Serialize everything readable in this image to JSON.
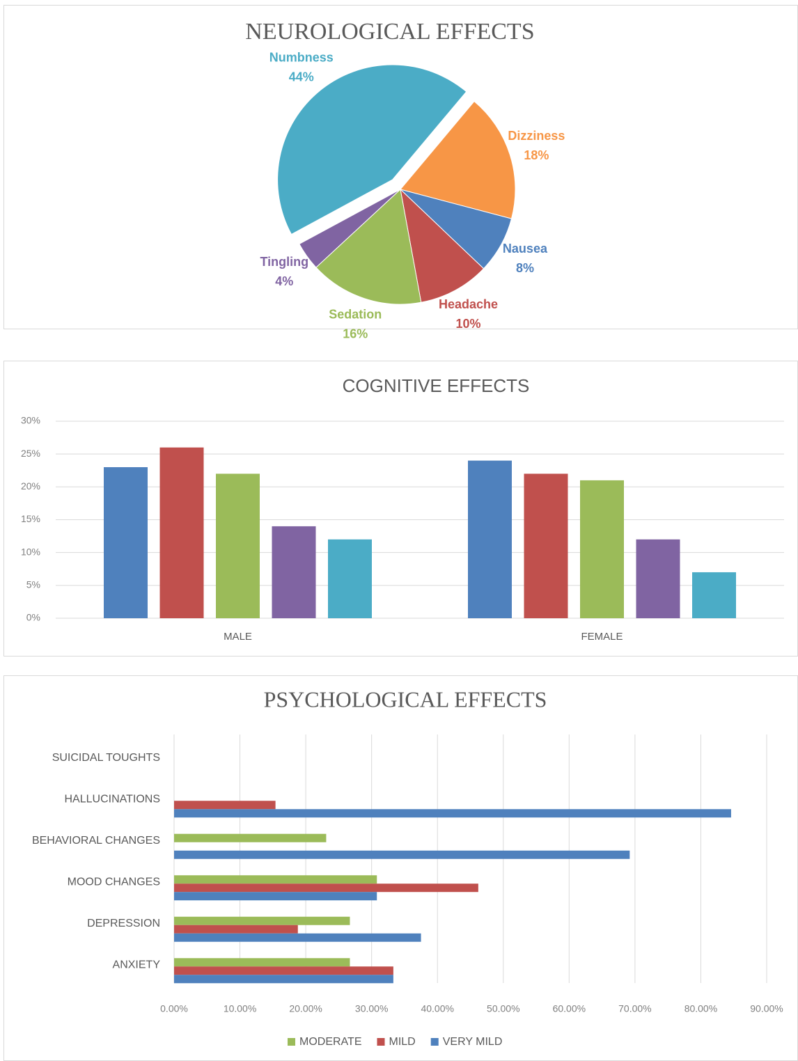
{
  "chart_data": [
    {
      "type": "pie",
      "title": "NEUROLOGICAL EFFECTS",
      "categories": [
        "Dizziness",
        "Nausea",
        "Headache",
        "Sedation",
        "Tingling",
        "Numbness"
      ],
      "values": [
        18,
        8,
        10,
        16,
        4,
        44
      ],
      "value_labels": [
        "18%",
        "8%",
        "10%",
        "16%",
        "4%",
        "44%"
      ],
      "colors": [
        "#f79646",
        "#4f81bd",
        "#c0504d",
        "#9bbb59",
        "#8064a2",
        "#4bacc6"
      ]
    },
    {
      "type": "bar",
      "title": "COGNITIVE EFFECTS",
      "categories": [
        "MALE",
        "FEMALE"
      ],
      "series": [
        {
          "color": "#4f81bd",
          "values": [
            23,
            24
          ]
        },
        {
          "color": "#c0504d",
          "values": [
            26,
            22
          ]
        },
        {
          "color": "#9bbb59",
          "values": [
            22,
            21
          ]
        },
        {
          "color": "#8064a2",
          "values": [
            14,
            12
          ]
        },
        {
          "color": "#4bacc6",
          "values": [
            12,
            7
          ]
        }
      ],
      "ylim": [
        0,
        30
      ],
      "yticks": [
        {
          "value": 0,
          "label": "0%"
        },
        {
          "value": 5,
          "label": "5%"
        },
        {
          "value": 10,
          "label": "10%"
        },
        {
          "value": 15,
          "label": "15%"
        },
        {
          "value": 20,
          "label": "20%"
        },
        {
          "value": 25,
          "label": "25%"
        },
        {
          "value": 30,
          "label": "30%"
        }
      ],
      "grid": true
    },
    {
      "type": "hbar",
      "title": "PSYCHOLOGICAL EFFECTS",
      "categories": [
        "ANXIETY",
        "DEPRESSION",
        "MOOD CHANGES",
        "BEHAVIORAL CHANGES",
        "HALLUCINATIONS",
        "SUICIDAL TOUGHTS"
      ],
      "series": [
        {
          "name": "MODERATE",
          "color": "#9bbb59",
          "values": [
            26.7,
            26.7,
            30.8,
            23.1,
            0,
            0
          ]
        },
        {
          "name": "MILD",
          "color": "#c0504d",
          "values": [
            33.3,
            18.8,
            46.2,
            0,
            15.4,
            0
          ]
        },
        {
          "name": "VERY MILD",
          "color": "#4f81bd",
          "values": [
            33.3,
            37.5,
            30.8,
            69.2,
            84.6,
            0
          ]
        }
      ],
      "xlim": [
        0,
        90
      ],
      "xticks": [
        {
          "value": 0,
          "label": "0.00%"
        },
        {
          "value": 10,
          "label": "10.00%"
        },
        {
          "value": 20,
          "label": "20.00%"
        },
        {
          "value": 30,
          "label": "30.00%"
        },
        {
          "value": 40,
          "label": "40.00%"
        },
        {
          "value": 50,
          "label": "50.00%"
        },
        {
          "value": 60,
          "label": "60.00%"
        },
        {
          "value": 70,
          "label": "70.00%"
        },
        {
          "value": 80,
          "label": "80.00%"
        },
        {
          "value": 90,
          "label": "90.00%"
        }
      ],
      "grid": true,
      "legend": "bottom"
    }
  ]
}
